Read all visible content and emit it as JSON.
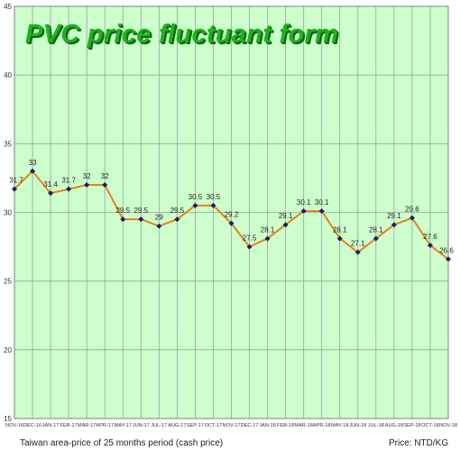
{
  "chart_data": {
    "type": "line",
    "title": "PVC price fluctuant form",
    "categories": [
      "NOV-16",
      "DEC-16",
      "JAN-17",
      "FEB-17",
      "MAR-17",
      "APR-17",
      "MAY-17",
      "JUN-17",
      "JUL-17",
      "AUG-17",
      "SEP-17",
      "OCT-17",
      "NOV-17",
      "DEC-17",
      "JAN-18",
      "FEB-18",
      "MAR-18",
      "APR-18",
      "MAY-18",
      "JUN-18",
      "JUL-18",
      "AUG-18",
      "SEP-18",
      "OCT-18",
      "NOV-18"
    ],
    "values": [
      31.7,
      33,
      31.4,
      31.7,
      32,
      32,
      29.5,
      29.5,
      29,
      29.5,
      30.5,
      30.5,
      29.2,
      27.5,
      28.1,
      29.1,
      30.1,
      30.1,
      28.1,
      27.1,
      28.1,
      29.1,
      29.6,
      27.6,
      26.6
    ],
    "ylim": [
      15,
      45
    ],
    "yticks": [
      15,
      20,
      25,
      30,
      35,
      40,
      45
    ],
    "grid": true,
    "legend": "none",
    "xlabel": "",
    "ylabel": "",
    "footnote_left": "Taiwan area-price of 25 months period (cash price)",
    "footnote_right": "Price: NTD/KG",
    "colors": {
      "background": "#ccffcc",
      "line": "#e8801a",
      "marker": "#1a2060",
      "grid": "#9aa0a0",
      "title": "#20b020"
    }
  }
}
